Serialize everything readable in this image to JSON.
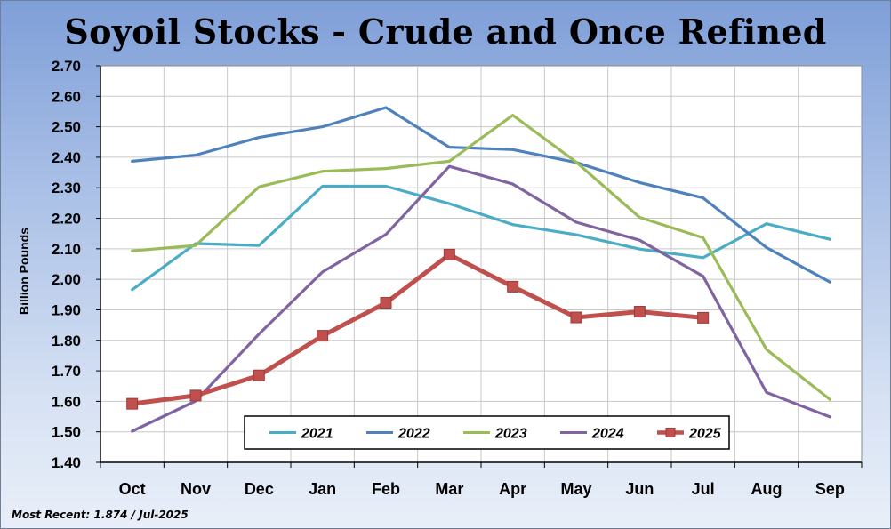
{
  "chart_data": {
    "type": "line",
    "title": "Soyoil Stocks - Crude and Once Refined",
    "ylabel": "Billion Pounds",
    "xlabel": "",
    "ylim": [
      1.4,
      2.7
    ],
    "yticks": [
      "1.40",
      "1.50",
      "1.60",
      "1.70",
      "1.80",
      "1.90",
      "2.00",
      "2.10",
      "2.20",
      "2.30",
      "2.40",
      "2.50",
      "2.60",
      "2.70"
    ],
    "categories": [
      "Oct",
      "Nov",
      "Dec",
      "Jan",
      "Feb",
      "Mar",
      "Apr",
      "May",
      "Jun",
      "Jul",
      "Aug",
      "Sep"
    ],
    "grid": true,
    "legend_position": "bottom-center",
    "series": [
      {
        "name": "2021",
        "color": "#4bacc6",
        "marker": "none",
        "values": [
          1.966,
          2.117,
          2.111,
          2.305,
          2.305,
          2.248,
          2.179,
          2.146,
          2.099,
          2.071,
          2.182,
          2.131
        ]
      },
      {
        "name": "2022",
        "color": "#4f81bd",
        "marker": "none",
        "values": [
          2.387,
          2.407,
          2.465,
          2.5,
          2.563,
          2.433,
          2.425,
          2.383,
          2.317,
          2.267,
          2.104,
          1.991
        ]
      },
      {
        "name": "2023",
        "color": "#9bbb59",
        "marker": "none",
        "values": [
          2.093,
          2.111,
          2.303,
          2.354,
          2.363,
          2.387,
          2.538,
          2.384,
          2.203,
          2.136,
          1.77,
          1.606
        ]
      },
      {
        "name": "2024",
        "color": "#8064a2",
        "marker": "none",
        "values": [
          1.502,
          1.601,
          1.821,
          2.024,
          2.147,
          2.37,
          2.312,
          2.187,
          2.128,
          2.01,
          1.629,
          1.549
        ]
      },
      {
        "name": "2025",
        "color": "#c0504d",
        "marker": "square",
        "values": [
          1.592,
          1.619,
          1.685,
          1.815,
          1.923,
          2.081,
          1.976,
          1.875,
          1.894,
          1.874,
          null,
          null
        ]
      }
    ]
  },
  "footer": "Most Recent: 1.874 / Jul-2025"
}
